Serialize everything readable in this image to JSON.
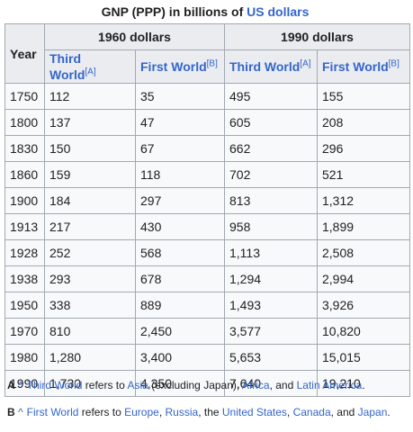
{
  "caption": {
    "prefix": "GNP (PPP) in billions of ",
    "link": "US dollars"
  },
  "header": {
    "year": "Year",
    "group1": "1960 dollars",
    "group2": "1990 dollars",
    "third_world": "Third World",
    "first_world": "First World",
    "ref_a": "[A]",
    "ref_b": "[B]"
  },
  "rows": [
    [
      "1750",
      "112",
      "35",
      "495",
      "155"
    ],
    [
      "1800",
      "137",
      "47",
      "605",
      "208"
    ],
    [
      "1830",
      "150",
      "67",
      "662",
      "296"
    ],
    [
      "1860",
      "159",
      "118",
      "702",
      "521"
    ],
    [
      "1900",
      "184",
      "297",
      "813",
      "1,312"
    ],
    [
      "1913",
      "217",
      "430",
      "958",
      "1,899"
    ],
    [
      "1928",
      "252",
      "568",
      "1,113",
      "2,508"
    ],
    [
      "1938",
      "293",
      "678",
      "1,294",
      "2,994"
    ],
    [
      "1950",
      "338",
      "889",
      "1,493",
      "3,926"
    ],
    [
      "1970",
      "810",
      "2,450",
      "3,577",
      "10,820"
    ],
    [
      "1980",
      "1,280",
      "3,400",
      "5,653",
      "15,015"
    ],
    [
      "1990",
      "1,730",
      "4,350",
      "7,640",
      "19,210"
    ]
  ],
  "notes": {
    "a": {
      "letter": "A",
      "caret": "^",
      "link": "Third World",
      "t1": " refers to ",
      "l1": "Asia",
      "t2": " (excluding Japan), ",
      "l2": "Africa",
      "t3": ", and ",
      "l3": "Latin America",
      "t4": "."
    },
    "b": {
      "letter": "B",
      "caret": "^",
      "link": "First World",
      "t1": " refers to ",
      "l1": "Europe",
      "t2": ", ",
      "l2": "Russia",
      "t3": ", the ",
      "l3": "United States",
      "t4": ", ",
      "l4": "Canada",
      "t5": ", and ",
      "l5": "Japan",
      "t6": "."
    }
  },
  "colors": {
    "link": "#3366cc",
    "header_bg": "#eaecf0",
    "cell_bg": "#f8f9fa",
    "border": "#a2a9b1"
  }
}
